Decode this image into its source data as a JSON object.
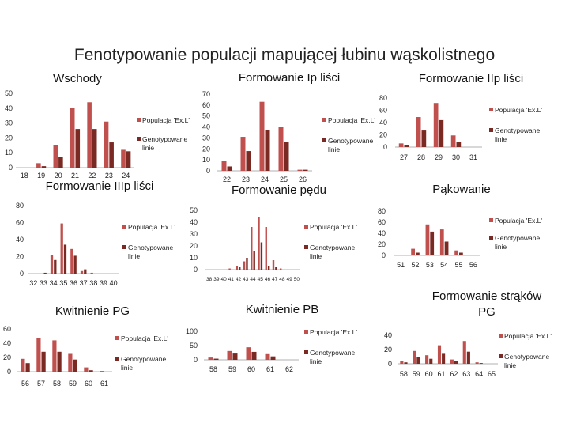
{
  "page": {
    "title": "Fenotypowanie populacji mapującej łubinu wąskolistnego"
  },
  "colors": {
    "parent": "#c0504d",
    "line": "#7a2a23",
    "axis": "#999999",
    "text": "#222222"
  },
  "legend_labels": {
    "parent": "Populacja 'Ex.L'",
    "lines": "Genotypowane linie"
  },
  "chart_data": [
    {
      "id": "wschody",
      "type": "bar",
      "title": "Wschody",
      "ylim": [
        0,
        50
      ],
      "yticks": [
        0,
        10,
        20,
        30,
        40,
        50
      ],
      "categories": [
        "18",
        "19",
        "20",
        "21",
        "22",
        "23",
        "24"
      ],
      "series": [
        {
          "name": "Populacja 'Ex.L'",
          "values": [
            0,
            3,
            15,
            40,
            44,
            31,
            12
          ]
        },
        {
          "name": "Genotypowane linie",
          "values": [
            0,
            1,
            7,
            26,
            26,
            17,
            11
          ]
        }
      ]
    },
    {
      "id": "ip",
      "type": "bar",
      "title": "Formowanie Ip liści",
      "ylim": [
        0,
        70
      ],
      "yticks": [
        0,
        10,
        20,
        30,
        40,
        50,
        60,
        70
      ],
      "categories": [
        "22",
        "23",
        "24",
        "25",
        "26"
      ],
      "series": [
        {
          "name": "Populacja 'Ex.L'",
          "values": [
            9,
            31,
            63,
            40,
            1
          ]
        },
        {
          "name": "Genotypowane linie",
          "values": [
            4,
            18,
            37,
            26,
            1
          ]
        }
      ]
    },
    {
      "id": "iip",
      "type": "bar",
      "title": "Formowanie IIp liści",
      "ylim": [
        0,
        80
      ],
      "yticks": [
        0,
        20,
        40,
        60,
        80
      ],
      "categories": [
        "27",
        "28",
        "29",
        "30",
        "31"
      ],
      "series": [
        {
          "name": "Populacja 'Ex.L'",
          "values": [
            6,
            49,
            72,
            19,
            0
          ]
        },
        {
          "name": "Genotypowane linie",
          "values": [
            3,
            27,
            44,
            9,
            0
          ]
        }
      ]
    },
    {
      "id": "iiip",
      "type": "bar",
      "title": "Formowanie IIIp liści",
      "ylim": [
        0,
        80
      ],
      "yticks": [
        0,
        20,
        40,
        60,
        80
      ],
      "categories": [
        "32",
        "33",
        "34",
        "35",
        "36",
        "37",
        "38",
        "39",
        "40"
      ],
      "series": [
        {
          "name": "Populacja 'Ex.L'",
          "values": [
            0,
            0,
            22,
            59,
            29,
            3,
            1,
            0,
            0
          ]
        },
        {
          "name": "Genotypowane linie",
          "values": [
            0,
            1,
            16,
            34,
            21,
            5,
            0,
            0,
            0
          ]
        }
      ]
    },
    {
      "id": "ped",
      "type": "bar",
      "title": "Formowanie pędu",
      "ylim": [
        0,
        50
      ],
      "yticks": [
        0,
        10,
        20,
        30,
        40,
        50
      ],
      "categories": [
        "38",
        "39",
        "40",
        "41",
        "42",
        "43",
        "44",
        "45",
        "46",
        "47",
        "48",
        "49",
        "50"
      ],
      "series": [
        {
          "name": "Populacja 'Ex.L'",
          "values": [
            0,
            0,
            0,
            1,
            3,
            7,
            36,
            44,
            36,
            8,
            1,
            0,
            0
          ]
        },
        {
          "name": "Genotypowane linie",
          "values": [
            0,
            0,
            0,
            0,
            2,
            10,
            16,
            23,
            3,
            2,
            0,
            0,
            0
          ]
        }
      ]
    },
    {
      "id": "pakowanie",
      "type": "bar",
      "title": "Pąkowanie",
      "ylim": [
        0,
        80
      ],
      "yticks": [
        0,
        20,
        40,
        60,
        80
      ],
      "categories": [
        "51",
        "52",
        "53",
        "54",
        "55",
        "56"
      ],
      "series": [
        {
          "name": "Populacja 'Ex.L'",
          "values": [
            0,
            12,
            56,
            47,
            9,
            0
          ]
        },
        {
          "name": "Genotypowane linie",
          "values": [
            0,
            5,
            43,
            25,
            5,
            0
          ]
        }
      ]
    },
    {
      "id": "pg",
      "type": "bar",
      "title": "Kwitnienie PG",
      "ylim": [
        0,
        60
      ],
      "yticks": [
        0,
        20,
        40,
        60
      ],
      "categories": [
        "56",
        "57",
        "58",
        "59",
        "60",
        "61"
      ],
      "series": [
        {
          "name": "Populacja 'Ex.L'",
          "values": [
            18,
            47,
            44,
            25,
            6,
            1
          ]
        },
        {
          "name": "Genotypowane linie",
          "values": [
            12,
            28,
            28,
            17,
            2,
            0
          ]
        }
      ]
    },
    {
      "id": "pb",
      "type": "bar",
      "title": "Kwitnienie PB",
      "ylim": [
        0,
        100
      ],
      "yticks": [
        0,
        50,
        100
      ],
      "categories": [
        "58",
        "59",
        "60",
        "61",
        "62"
      ],
      "series": [
        {
          "name": "Populacja 'Ex.L'",
          "values": [
            8,
            31,
            44,
            20,
            0
          ]
        },
        {
          "name": "Genotypowane linie",
          "values": [
            4,
            22,
            28,
            12,
            0
          ]
        }
      ]
    },
    {
      "id": "straki",
      "type": "bar",
      "title": "Formowanie strąków PG",
      "ylim": [
        0,
        40
      ],
      "yticks": [
        0,
        20,
        40
      ],
      "categories": [
        "58",
        "59",
        "60",
        "61",
        "62",
        "63",
        "64",
        "65"
      ],
      "series": [
        {
          "name": "Populacja 'Ex.L'",
          "values": [
            4,
            18,
            12,
            26,
            6,
            32,
            2,
            0
          ]
        },
        {
          "name": "Genotypowane linie",
          "values": [
            2,
            10,
            7,
            14,
            4,
            17,
            1,
            0
          ]
        }
      ]
    }
  ]
}
